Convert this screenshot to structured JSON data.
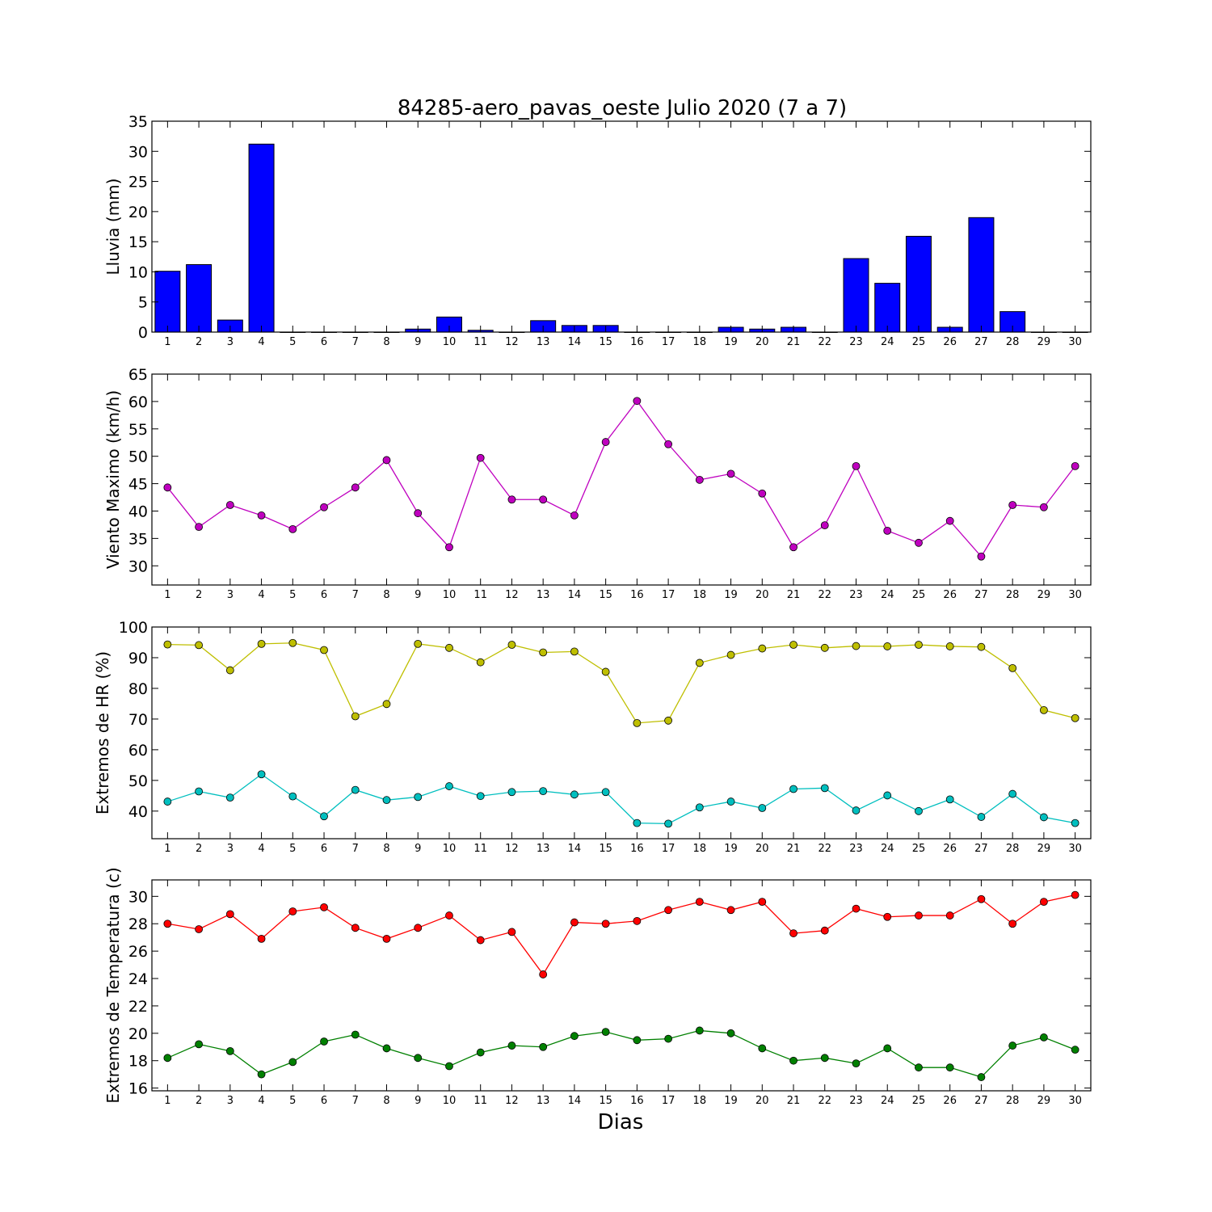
{
  "figure_title": "84285-aero_pavas_oeste Julio 2020  (7 a 7)",
  "xlabel": "Dias",
  "colors": {
    "rain": "#0000ff",
    "wind": "#bf00bf",
    "hr_max": "#bfbf00",
    "hr_min": "#00bfbf",
    "temp_max": "#ff0000",
    "temp_min": "#008000"
  },
  "chart_data": [
    {
      "type": "bar",
      "ylabel": "Lluvia (mm)",
      "ylim": [
        0,
        35
      ],
      "yticks": [
        0,
        5,
        10,
        15,
        20,
        25,
        30,
        35
      ],
      "categories": [
        1,
        2,
        3,
        4,
        5,
        6,
        7,
        8,
        9,
        10,
        11,
        12,
        13,
        14,
        15,
        16,
        17,
        18,
        19,
        20,
        21,
        22,
        23,
        24,
        25,
        26,
        27,
        28,
        29,
        30
      ],
      "series": [
        {
          "values": [
            10.1,
            11.2,
            2.0,
            31.2,
            0,
            0,
            0,
            0,
            0.5,
            2.5,
            0.3,
            0,
            1.9,
            1.1,
            1.1,
            0,
            0,
            0,
            0.8,
            0.5,
            0.8,
            0,
            12.2,
            8.1,
            15.9,
            0.8,
            19.0,
            3.4,
            0,
            0
          ]
        }
      ]
    },
    {
      "type": "line",
      "ylabel": "Viento Maximo (km/h)",
      "ylim": [
        26.5,
        65
      ],
      "yticks": [
        30,
        35,
        40,
        45,
        50,
        55,
        60,
        65
      ],
      "categories": [
        1,
        2,
        3,
        4,
        5,
        6,
        7,
        8,
        9,
        10,
        11,
        12,
        13,
        14,
        15,
        16,
        17,
        18,
        19,
        20,
        21,
        22,
        23,
        24,
        25,
        26,
        27,
        28,
        29,
        30
      ],
      "series": [
        {
          "values": [
            44.3,
            37.1,
            41.1,
            39.2,
            36.7,
            40.7,
            44.3,
            49.3,
            39.6,
            33.4,
            49.7,
            42.1,
            42.1,
            39.2,
            52.6,
            60.1,
            52.2,
            45.7,
            46.8,
            43.2,
            33.4,
            37.4,
            48.2,
            36.4,
            34.2,
            38.2,
            31.7,
            41.1,
            40.7,
            48.2
          ]
        }
      ]
    },
    {
      "type": "line",
      "ylabel": "Extremos de HR (%)",
      "ylim": [
        31,
        100
      ],
      "yticks": [
        40,
        50,
        60,
        70,
        80,
        90,
        100
      ],
      "categories": [
        1,
        2,
        3,
        4,
        5,
        6,
        7,
        8,
        9,
        10,
        11,
        12,
        13,
        14,
        15,
        16,
        17,
        18,
        19,
        20,
        21,
        22,
        23,
        24,
        25,
        26,
        27,
        28,
        29,
        30
      ],
      "series": [
        {
          "values": [
            94.3,
            94.1,
            85.9,
            94.5,
            94.8,
            92.5,
            70.9,
            74.9,
            94.5,
            93.2,
            88.5,
            94.2,
            91.7,
            92.0,
            85.4,
            68.7,
            69.5,
            88.3,
            90.9,
            93.0,
            94.2,
            93.2,
            93.8,
            93.7,
            94.2,
            93.7,
            93.5,
            86.6,
            72.9,
            70.3
          ]
        },
        {
          "values": [
            43.1,
            46.4,
            44.4,
            52.0,
            44.8,
            38.3,
            46.9,
            43.6,
            44.6,
            48.1,
            44.9,
            46.2,
            46.5,
            45.4,
            46.2,
            36.1,
            35.9,
            41.2,
            43.1,
            41.0,
            47.2,
            47.5,
            40.2,
            45.1,
            40.0,
            43.8,
            38.1,
            45.6,
            38.0,
            36.1
          ]
        }
      ]
    },
    {
      "type": "line",
      "ylabel": "Extremos de Temperatura (c)",
      "ylim": [
        15.8,
        31.2
      ],
      "yticks": [
        16,
        18,
        20,
        22,
        24,
        26,
        28,
        30
      ],
      "categories": [
        1,
        2,
        3,
        4,
        5,
        6,
        7,
        8,
        9,
        10,
        11,
        12,
        13,
        14,
        15,
        16,
        17,
        18,
        19,
        20,
        21,
        22,
        23,
        24,
        25,
        26,
        27,
        28,
        29,
        30
      ],
      "series": [
        {
          "values": [
            28.0,
            27.6,
            28.7,
            26.9,
            28.9,
            29.2,
            27.7,
            26.9,
            27.7,
            28.6,
            26.8,
            27.4,
            24.3,
            28.1,
            28.0,
            28.2,
            29.0,
            29.6,
            29.0,
            29.6,
            27.3,
            27.5,
            29.1,
            28.5,
            28.6,
            28.6,
            29.8,
            28.0,
            29.6,
            30.1
          ]
        },
        {
          "values": [
            18.2,
            19.2,
            18.7,
            17.0,
            17.9,
            19.4,
            19.9,
            18.9,
            18.2,
            17.6,
            18.6,
            19.1,
            19.0,
            19.8,
            20.1,
            19.5,
            19.6,
            20.2,
            20.0,
            18.9,
            18.0,
            18.2,
            17.8,
            18.9,
            17.5,
            17.5,
            16.8,
            19.1,
            19.7,
            18.8
          ]
        }
      ]
    }
  ]
}
